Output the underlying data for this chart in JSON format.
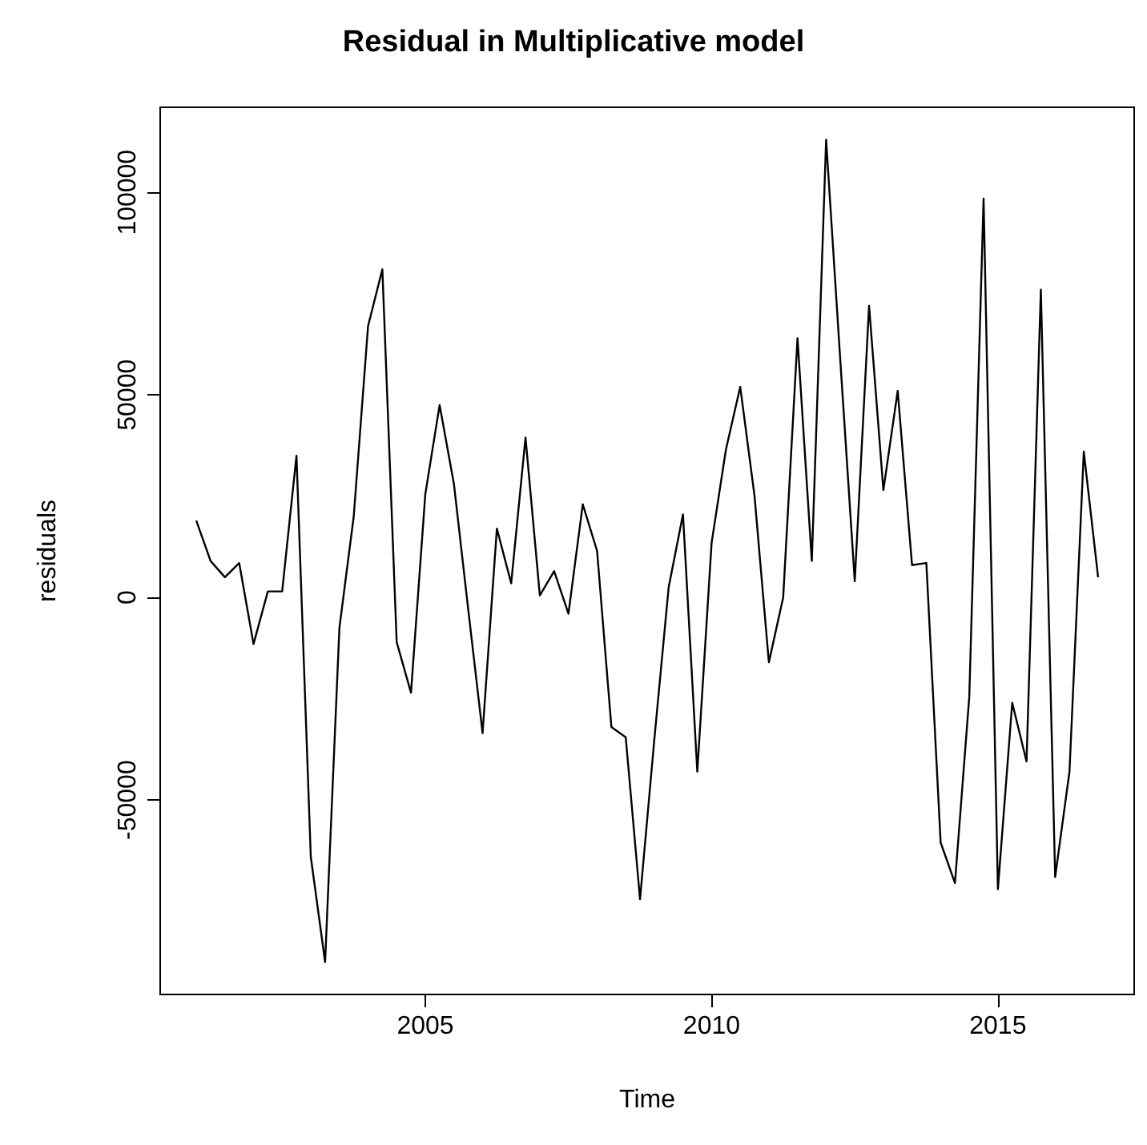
{
  "chart_data": {
    "type": "line",
    "title": "Residual in Multiplicative model",
    "xlabel": "Time",
    "ylabel": "residuals",
    "xlim": [
      2000.37,
      2017.38
    ],
    "xticks": [
      2005,
      2010,
      2015
    ],
    "ylim": [
      -98000,
      121000
    ],
    "yticks": [
      -50000,
      0,
      50000,
      100000
    ],
    "marker": "none",
    "line_style": "solid",
    "series": [
      {
        "color": "#000000",
        "x": [
          2001,
          2001.25,
          2001.5,
          2001.75,
          2002,
          2002.25,
          2002.5,
          2002.75,
          2003,
          2003.25,
          2003.5,
          2003.75,
          2004,
          2004.25,
          2004.5,
          2004.75,
          2005,
          2005.25,
          2005.5,
          2005.75,
          2006,
          2006.25,
          2006.5,
          2006.75,
          2007,
          2007.25,
          2007.5,
          2007.75,
          2008,
          2008.25,
          2008.5,
          2008.75,
          2009,
          2009.25,
          2009.5,
          2009.75,
          2010,
          2010.25,
          2010.5,
          2010.75,
          2011,
          2011.25,
          2011.5,
          2011.75,
          2012,
          2012.25,
          2012.5,
          2012.75,
          2013,
          2013.25,
          2013.5,
          2013.75,
          2014,
          2014.25,
          2014.5,
          2014.75,
          2015,
          2015.25,
          2015.5,
          2015.75,
          2016,
          2016.25,
          2016.5,
          2016.75
        ],
        "values": [
          19000,
          9000,
          5000,
          8500,
          -11500,
          1500,
          1500,
          35000,
          -64000,
          -90000,
          -7500,
          20000,
          67000,
          81000,
          -11000,
          -23500,
          25500,
          47500,
          28000,
          -3000,
          -33500,
          17000,
          3500,
          39500,
          500,
          6500,
          -4000,
          23000,
          11500,
          -32000,
          -34500,
          -74500,
          -35000,
          2500,
          20500,
          -43000,
          13500,
          36500,
          52000,
          25000,
          -16000,
          0,
          64000,
          9000,
          113000,
          58000,
          4000,
          72000,
          26500,
          51000,
          8000,
          8500,
          -60500,
          -70500,
          -24500,
          98500,
          -72000,
          -26000,
          -40500,
          76000,
          -69000,
          -43000,
          36000,
          5000
        ]
      }
    ]
  }
}
